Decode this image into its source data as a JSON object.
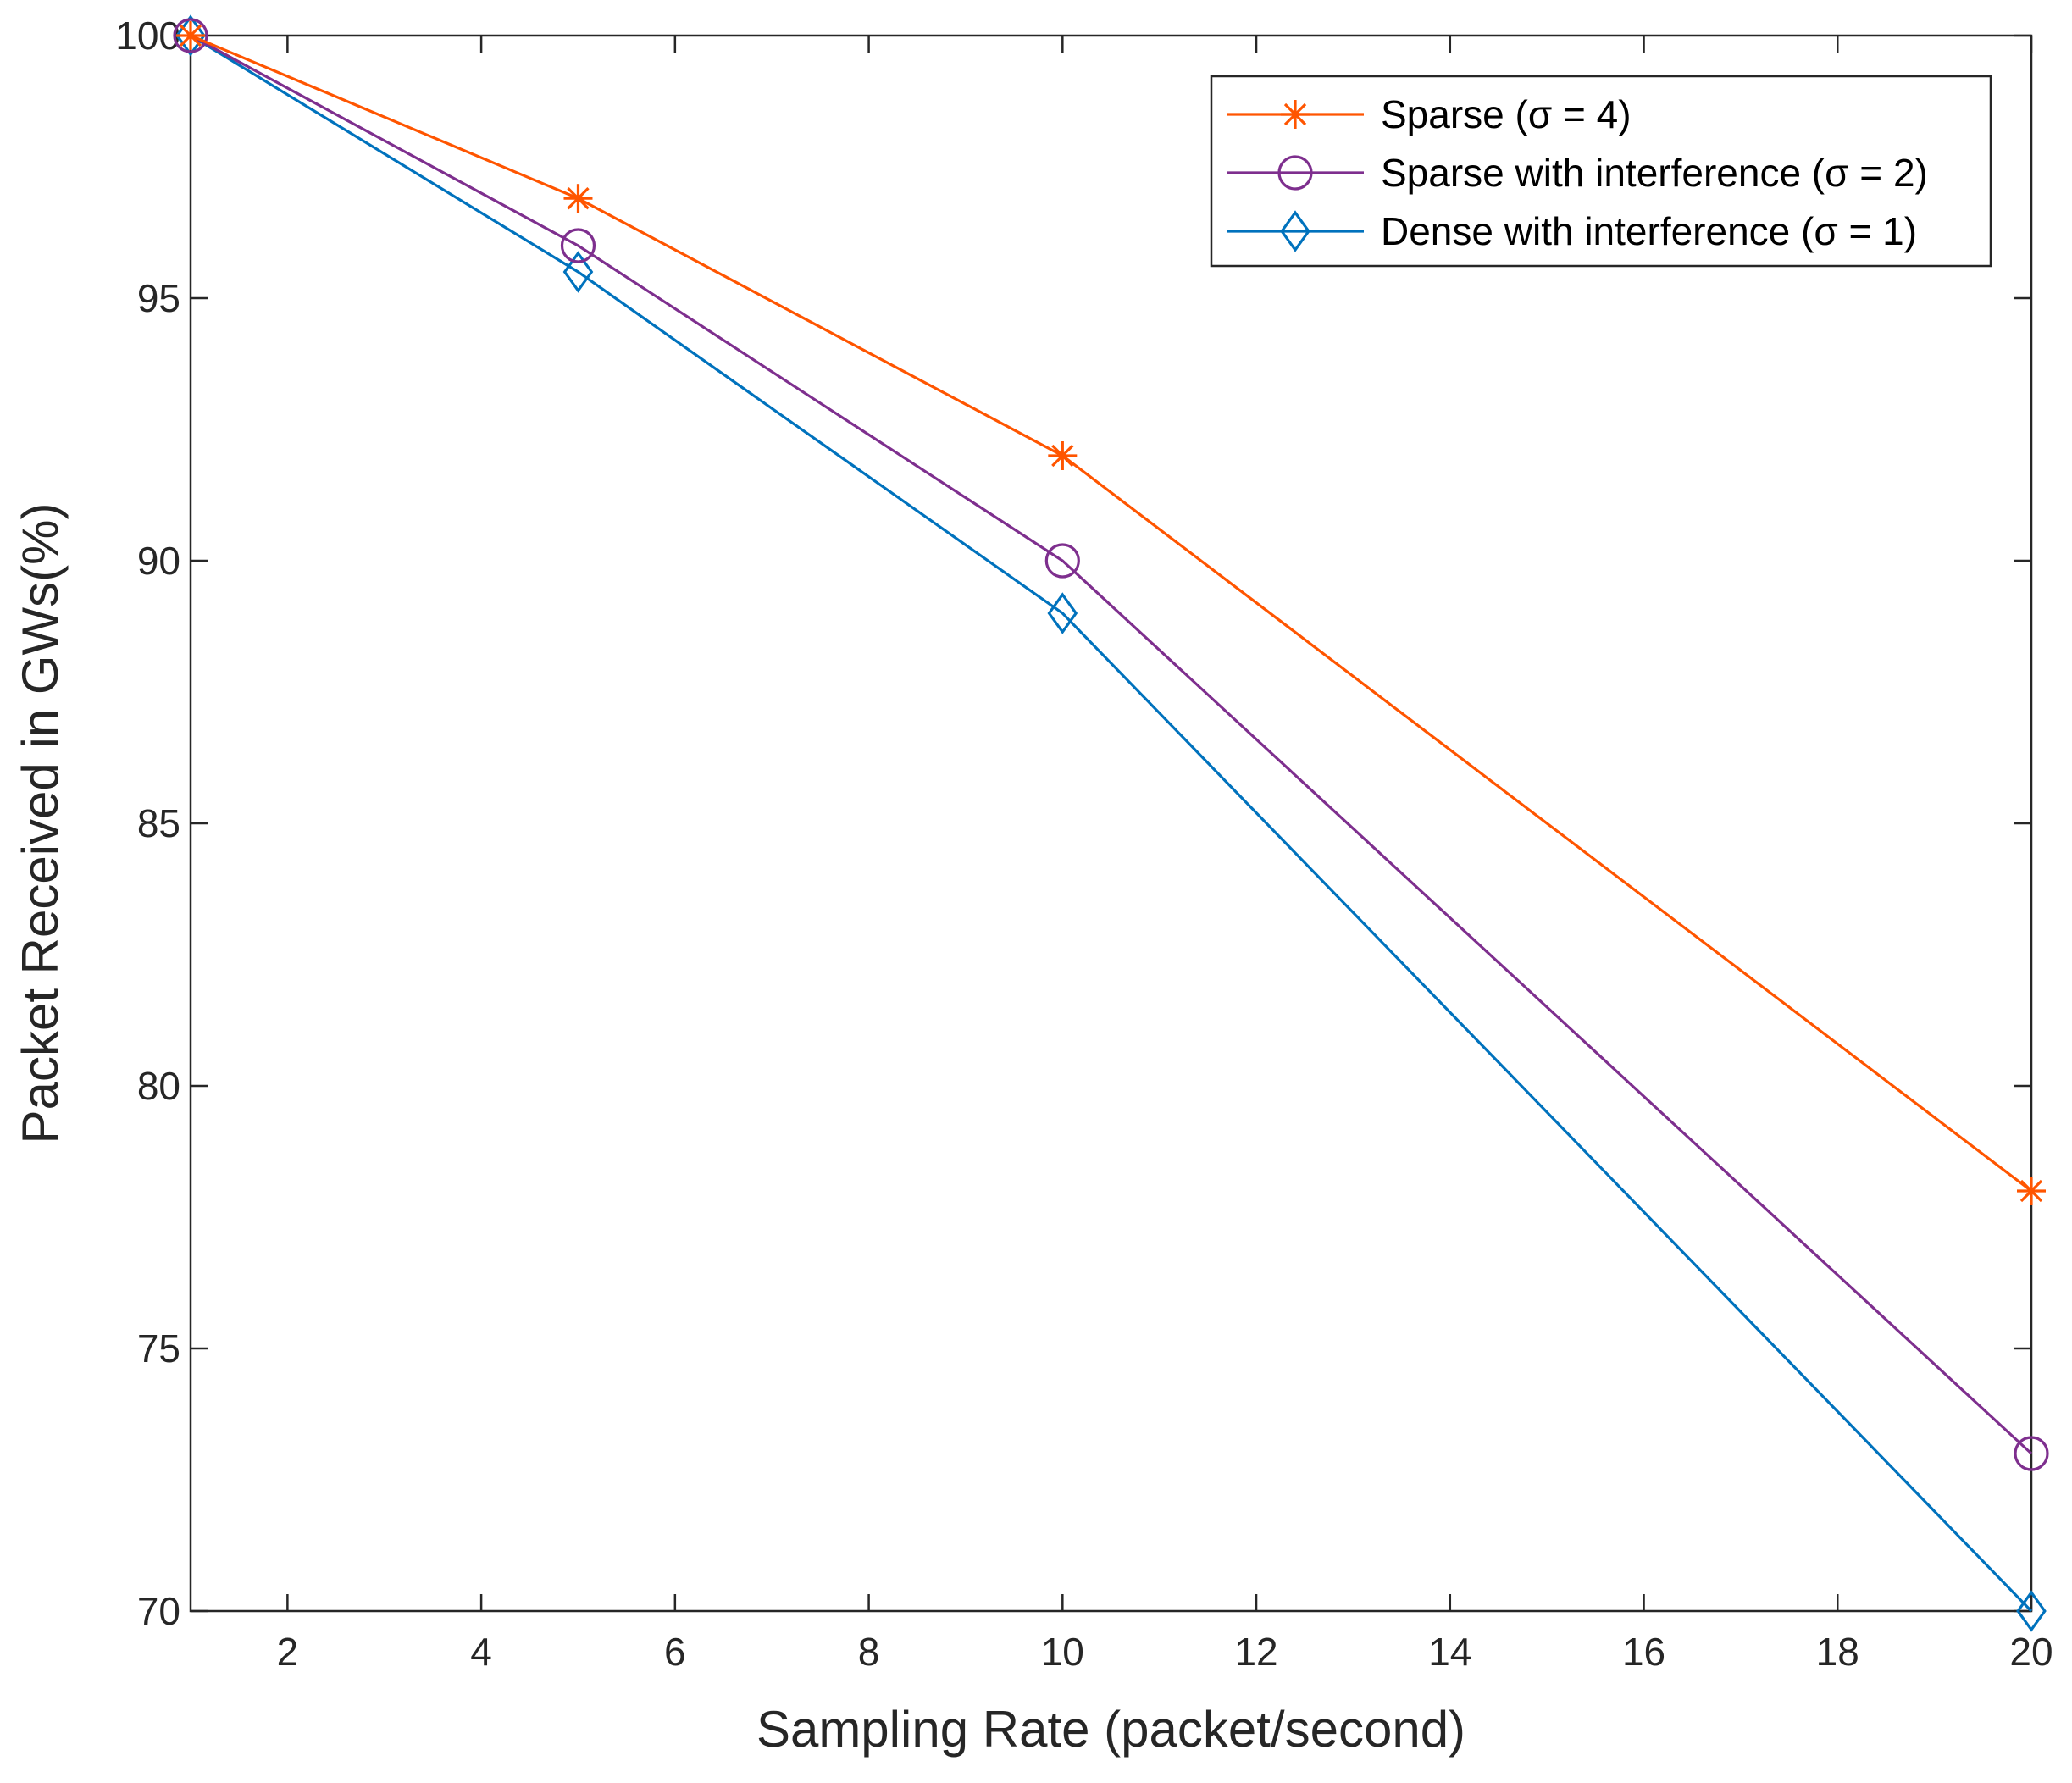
{
  "chart_data": {
    "type": "line",
    "title": "",
    "xlabel": "Sampling Rate (packet/second)",
    "ylabel": "Packet Received in GWs(%)",
    "xlim": [
      1,
      20
    ],
    "ylim": [
      70,
      100
    ],
    "xticks": [
      2,
      4,
      6,
      8,
      10,
      12,
      14,
      16,
      18,
      20
    ],
    "yticks": [
      70,
      75,
      80,
      85,
      90,
      95,
      100
    ],
    "grid": false,
    "legend_position": "top-right",
    "x": [
      1,
      5,
      10,
      20
    ],
    "series": [
      {
        "name": "Sparse (σ = 4)",
        "marker": "asterisk",
        "color": "#FF5500",
        "values": [
          100,
          96.9,
          92,
          78
        ]
      },
      {
        "name": "Sparse with interference (σ = 2)",
        "marker": "circle",
        "color": "#7E2F8E",
        "values": [
          100,
          96,
          90,
          73
        ]
      },
      {
        "name": "Dense with interference (σ = 1)",
        "marker": "diamond",
        "color": "#0072BD",
        "values": [
          100,
          95.5,
          89,
          70
        ]
      }
    ]
  }
}
